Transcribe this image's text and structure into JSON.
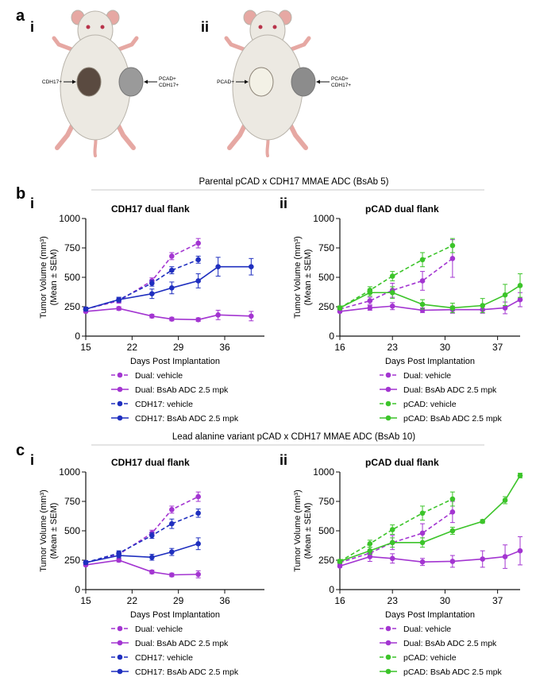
{
  "figure": {
    "panel_a": {
      "letter": "a",
      "mice": [
        {
          "roman": "i",
          "labels": [
            {
              "text": "CDH17+"
            },
            {
              "text": "PCAD+\nCDH17+"
            }
          ],
          "colors": [
            "#5a4a40",
            "#9a9a9a"
          ]
        },
        {
          "roman": "ii",
          "labels": [
            {
              "text": "PCAD+"
            },
            {
              "text": "PCAD+\nCDH17+"
            }
          ],
          "colors": [
            "#f3f1e6",
            "#8c8c8c"
          ]
        }
      ]
    },
    "panel_b": {
      "letter": "b",
      "title": "Parental pCAD x CDH17 MMAE ADC (BsAb 5)"
    },
    "panel_c": {
      "letter": "c",
      "title": "Lead alanine variant pCAD x CDH17 MMAE ADC (BsAb 10)"
    },
    "colors": {
      "purple": "#a335d1",
      "blue": "#1f2fbf",
      "green": "#3cc42a",
      "line": "#c8c8c8"
    }
  },
  "chart_data": [
    {
      "id": "b-i",
      "roman": "i",
      "type": "line",
      "title": "CDH17 dual flank",
      "xlabel": "Days Post Implantation",
      "ylabel_line1": "Tumor Volume (mm³)",
      "ylabel_line2": "(Mean ± SEM)",
      "xlim": [
        15,
        42
      ],
      "ylim": [
        0,
        1000
      ],
      "xticks": [
        15,
        22,
        29,
        36
      ],
      "yticks": [
        0,
        250,
        500,
        750,
        1000
      ],
      "series": [
        {
          "name": "Dual: vehicle",
          "color": "#a335d1",
          "dashed": true,
          "x": [
            15,
            20,
            25,
            28,
            32
          ],
          "y": [
            230,
            300,
            470,
            680,
            790
          ],
          "err": [
            15,
            20,
            25,
            30,
            40
          ]
        },
        {
          "name": "Dual: BsAb  ADC 2.5 mpk",
          "color": "#a335d1",
          "dashed": false,
          "x": [
            15,
            20,
            25,
            28,
            32,
            35,
            40
          ],
          "y": [
            210,
            235,
            170,
            145,
            140,
            180,
            170
          ],
          "err": [
            10,
            15,
            15,
            15,
            15,
            40,
            40
          ]
        },
        {
          "name": "CDH17: vehicle",
          "color": "#1f2fbf",
          "dashed": true,
          "x": [
            15,
            20,
            25,
            28,
            32
          ],
          "y": [
            230,
            310,
            450,
            560,
            650
          ],
          "err": [
            15,
            20,
            25,
            30,
            30
          ]
        },
        {
          "name": "CDH17:  BsAb  ADC 2.5 mpk",
          "color": "#1f2fbf",
          "dashed": false,
          "x": [
            15,
            20,
            25,
            28,
            32,
            35,
            40
          ],
          "y": [
            230,
            310,
            360,
            410,
            470,
            590,
            590
          ],
          "err": [
            15,
            20,
            40,
            50,
            60,
            80,
            70
          ]
        }
      ]
    },
    {
      "id": "b-ii",
      "roman": "ii",
      "type": "line",
      "title": "pCAD dual flank",
      "xlabel": "Days Post Implantation",
      "ylabel_line1": "Tumor Volume (mm³)",
      "ylabel_line2": "(Mean ± SEM)",
      "xlim": [
        16,
        40
      ],
      "ylim": [
        0,
        1000
      ],
      "xticks": [
        16,
        23,
        30,
        37
      ],
      "yticks": [
        0,
        250,
        500,
        750,
        1000
      ],
      "series": [
        {
          "name": "Dual: vehicle",
          "color": "#a335d1",
          "dashed": true,
          "x": [
            16,
            20,
            23,
            27,
            31
          ],
          "y": [
            230,
            300,
            390,
            470,
            660
          ],
          "err": [
            15,
            30,
            60,
            80,
            160
          ]
        },
        {
          "name": "Dual: BsAb ADC 2.5 mpk",
          "color": "#a335d1",
          "dashed": false,
          "x": [
            16,
            20,
            23,
            27,
            31,
            35,
            38,
            40
          ],
          "y": [
            210,
            240,
            255,
            220,
            225,
            225,
            240,
            310
          ],
          "err": [
            10,
            20,
            30,
            20,
            30,
            30,
            50,
            60
          ]
        },
        {
          "name": "pCAD: vehicle",
          "color": "#3cc42a",
          "dashed": true,
          "x": [
            16,
            20,
            23,
            27,
            31
          ],
          "y": [
            240,
            390,
            510,
            650,
            770
          ],
          "err": [
            15,
            30,
            40,
            60,
            60
          ]
        },
        {
          "name": "pCAD: BsAb ADC 2.5 mpk",
          "color": "#3cc42a",
          "dashed": false,
          "x": [
            16,
            20,
            23,
            27,
            31,
            35,
            38,
            40
          ],
          "y": [
            240,
            370,
            370,
            270,
            240,
            260,
            350,
            430
          ],
          "err": [
            15,
            30,
            50,
            40,
            40,
            60,
            90,
            100
          ]
        }
      ]
    },
    {
      "id": "c-i",
      "roman": "i",
      "type": "line",
      "title": "CDH17 dual flank",
      "xlabel": "Days Post Implantation",
      "ylabel_line1": "Tumor Volume (mm³)",
      "ylabel_line2": "(Mean ± SEM)",
      "xlim": [
        15,
        42
      ],
      "ylim": [
        0,
        1000
      ],
      "xticks": [
        15,
        22,
        29,
        36
      ],
      "yticks": [
        0,
        250,
        500,
        750,
        1000
      ],
      "series": [
        {
          "name": "Dual: vehicle",
          "color": "#a335d1",
          "dashed": true,
          "x": [
            15,
            20,
            25,
            28,
            32
          ],
          "y": [
            230,
            300,
            480,
            680,
            790
          ],
          "err": [
            15,
            20,
            25,
            30,
            40
          ]
        },
        {
          "name": "Dual: BsAb  ADC 2.5 mpk",
          "color": "#a335d1",
          "dashed": false,
          "x": [
            15,
            20,
            25,
            28,
            32
          ],
          "y": [
            210,
            250,
            150,
            125,
            130
          ],
          "err": [
            10,
            15,
            15,
            15,
            30
          ]
        },
        {
          "name": "CDH17: vehicle",
          "color": "#1f2fbf",
          "dashed": true,
          "x": [
            15,
            20,
            25,
            28,
            32
          ],
          "y": [
            230,
            310,
            460,
            560,
            650
          ],
          "err": [
            15,
            20,
            25,
            40,
            35
          ]
        },
        {
          "name": "CDH17:  BsAb  ADC 2.5 mpk",
          "color": "#1f2fbf",
          "dashed": false,
          "x": [
            15,
            20,
            25,
            28,
            32
          ],
          "y": [
            230,
            290,
            275,
            320,
            390
          ],
          "err": [
            15,
            20,
            25,
            30,
            50
          ]
        }
      ]
    },
    {
      "id": "c-ii",
      "roman": "ii",
      "type": "line",
      "title": "pCAD dual flank",
      "xlabel": "Days Post Implantation",
      "ylabel_line1": "Tumor Volume (mm³)",
      "ylabel_line2": "(Mean ± SEM)",
      "xlim": [
        16,
        40
      ],
      "ylim": [
        0,
        1000
      ],
      "xticks": [
        16,
        23,
        30,
        37
      ],
      "yticks": [
        0,
        250,
        500,
        750,
        1000
      ],
      "series": [
        {
          "name": "Dual: vehicle",
          "color": "#a335d1",
          "dashed": true,
          "x": [
            16,
            20,
            23,
            27,
            31
          ],
          "y": [
            230,
            310,
            400,
            480,
            660
          ],
          "err": [
            15,
            30,
            60,
            80,
            90
          ]
        },
        {
          "name": "Dual: BsAb ADC 2.5 mpk",
          "color": "#a335d1",
          "dashed": false,
          "x": [
            16,
            20,
            23,
            27,
            31,
            35,
            38,
            40
          ],
          "y": [
            200,
            280,
            265,
            235,
            240,
            260,
            280,
            330
          ],
          "err": [
            10,
            40,
            40,
            30,
            50,
            70,
            100,
            120
          ]
        },
        {
          "name": "pCAD: vehicle",
          "color": "#3cc42a",
          "dashed": true,
          "x": [
            16,
            20,
            23,
            27,
            31
          ],
          "y": [
            240,
            390,
            510,
            650,
            770
          ],
          "err": [
            15,
            30,
            40,
            60,
            60
          ]
        },
        {
          "name": "pCAD: BsAb ADC 2.5 mpk",
          "color": "#3cc42a",
          "dashed": false,
          "x": [
            16,
            20,
            23,
            27,
            31,
            35,
            38,
            40
          ],
          "y": [
            240,
            330,
            400,
            400,
            500,
            580,
            760,
            970
          ],
          "err": [
            15,
            30,
            40,
            40,
            30,
            15,
            30,
            20
          ]
        }
      ]
    }
  ]
}
